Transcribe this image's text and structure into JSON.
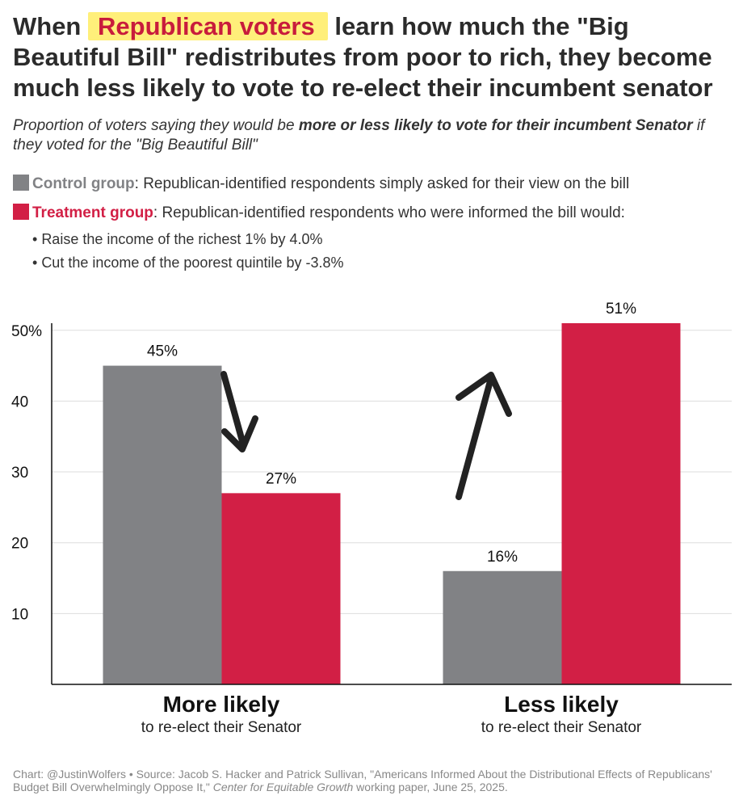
{
  "title": {
    "prefix": "When",
    "highlight": "Republican voters",
    "rest": " learn how much the \"Big Beautiful Bill\" redistributes from poor to rich, they become much less likely to vote to re-elect their incumbent senator"
  },
  "subtitle": {
    "part1": "Proportion of voters saying they would be ",
    "bold": "more or less likely to vote for their incumbent Senator",
    "part2": " if they voted for the \"Big Beautiful Bill\""
  },
  "legend": {
    "control_label": "Control group",
    "control_desc": ": Republican-identified respondents simply asked for their view on the bill",
    "treatment_label": "Treatment group",
    "treatment_desc": ": Republican-identified respondents who were informed the bill would:",
    "bullets": [
      "Raise the income of the richest 1% by 4.0%",
      "Cut the income of the poorest quintile by -3.8%"
    ]
  },
  "colors": {
    "control": "#818285",
    "treatment": "#d21f45",
    "highlight": "#ffef7a",
    "arrow": "#222222"
  },
  "chart_data": {
    "type": "bar",
    "title": "Proportion of voters saying they would be more or less likely to vote for their incumbent Senator",
    "categories": [
      "More likely",
      "Less likely"
    ],
    "category_subtitles": [
      "to re-elect their Senator",
      "to re-elect their Senator"
    ],
    "series": [
      {
        "name": "Control group",
        "values": [
          45,
          16
        ],
        "labels": [
          "45%",
          "16%"
        ]
      },
      {
        "name": "Treatment group",
        "values": [
          27,
          51
        ],
        "labels": [
          "27%",
          "51%"
        ]
      }
    ],
    "yticks": [
      10,
      20,
      30,
      40,
      50
    ],
    "ytick_labels": [
      "10",
      "20",
      "30",
      "40",
      "50%"
    ],
    "ylim": [
      0,
      51
    ],
    "grid": true,
    "annotations": [
      "arrow pointing down from control to treatment (More likely)",
      "arrow pointing up from control to treatment (Less likely)"
    ]
  },
  "footer": {
    "part1": "Chart: @JustinWolfers • Source: Jacob S. Hacker and Patrick Sullivan, \"Americans Informed About the Distributional Effects of Republicans' Budget Bill Overwhelmingly Oppose It,\" ",
    "italic": "Center for Equitable Growth",
    "part2": " working paper, June 25, 2025."
  }
}
